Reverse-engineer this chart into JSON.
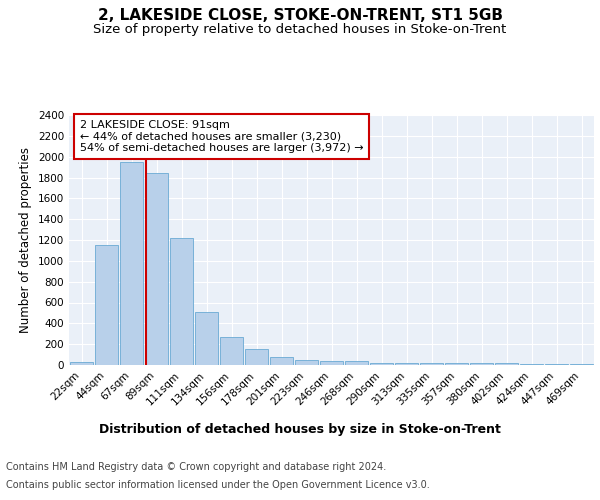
{
  "title": "2, LAKESIDE CLOSE, STOKE-ON-TRENT, ST1 5GB",
  "subtitle": "Size of property relative to detached houses in Stoke-on-Trent",
  "xlabel": "Distribution of detached houses by size in Stoke-on-Trent",
  "ylabel": "Number of detached properties",
  "categories": [
    "22sqm",
    "44sqm",
    "67sqm",
    "89sqm",
    "111sqm",
    "134sqm",
    "156sqm",
    "178sqm",
    "201sqm",
    "223sqm",
    "246sqm",
    "268sqm",
    "290sqm",
    "313sqm",
    "335sqm",
    "357sqm",
    "380sqm",
    "402sqm",
    "424sqm",
    "447sqm",
    "469sqm"
  ],
  "values": [
    30,
    1150,
    1950,
    1840,
    1220,
    510,
    265,
    150,
    80,
    45,
    40,
    35,
    18,
    20,
    18,
    15,
    15,
    18,
    12,
    10,
    12
  ],
  "bar_color": "#b8d0ea",
  "bar_edge_color": "#6aaad4",
  "red_line_x": 2.57,
  "annotation_text": "2 LAKESIDE CLOSE: 91sqm\n← 44% of detached houses are smaller (3,230)\n54% of semi-detached houses are larger (3,972) →",
  "annotation_box_color": "#ffffff",
  "annotation_box_edge_color": "#cc0000",
  "property_line_color": "#cc0000",
  "ylim": [
    0,
    2400
  ],
  "yticks": [
    0,
    200,
    400,
    600,
    800,
    1000,
    1200,
    1400,
    1600,
    1800,
    2000,
    2200,
    2400
  ],
  "footer_line1": "Contains HM Land Registry data © Crown copyright and database right 2024.",
  "footer_line2": "Contains public sector information licensed under the Open Government Licence v3.0.",
  "plot_bg_color": "#eaf0f8",
  "title_fontsize": 11,
  "subtitle_fontsize": 9.5,
  "xlabel_fontsize": 9,
  "ylabel_fontsize": 8.5,
  "tick_fontsize": 7.5,
  "footer_fontsize": 7
}
